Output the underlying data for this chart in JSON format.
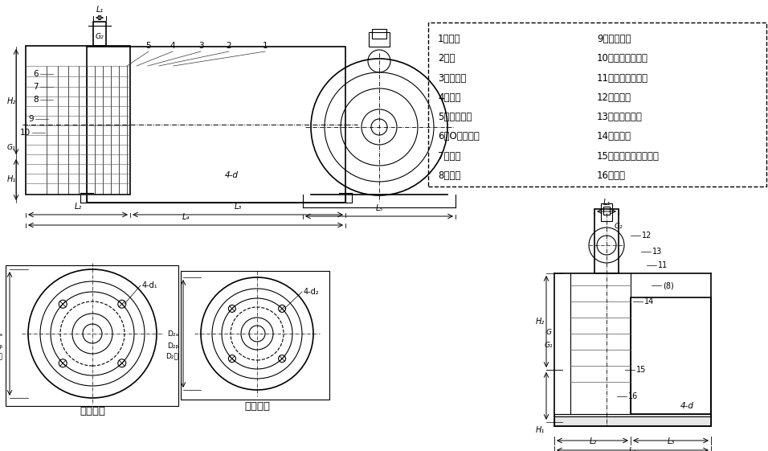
{
  "bg_color": "#ffffff",
  "line_color": "#000000",
  "legend_items_left": [
    "1、电机",
    "2、键",
    "3、连接架",
    "4、泵盖",
    "5、机械密封",
    "6、O型橡胶圈",
    "7、叶轮",
    "8、泵体"
  ],
  "legend_items_right": [
    "9、叶轮螺母",
    "10、塑料密封垫圈",
    "11、出口橡胶垫圈",
    "12、出水咀",
    "13、橡胶止回阀",
    "14、入水咀",
    "15、螺塞橡胶密封垫圈",
    "16、螺塞"
  ],
  "inlet_flange_label": "入口法兰",
  "outlet_flange_label": "出口法兰"
}
